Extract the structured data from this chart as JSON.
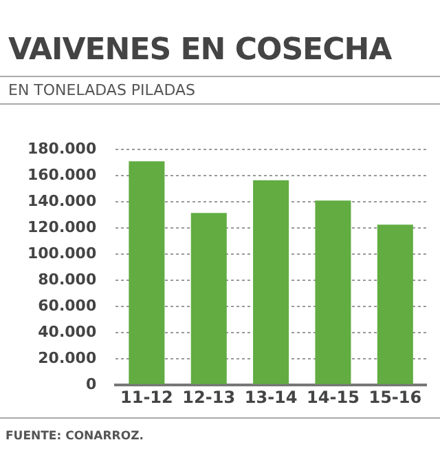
{
  "chart_data": {
    "type": "bar",
    "title": "VAIVENES EN COSECHA",
    "subtitle": "EN TONELADAS PILADAS",
    "categories": [
      "11-12",
      "12-13",
      "13-14",
      "14-15",
      "15-16"
    ],
    "values": [
      171000,
      131500,
      156500,
      141000,
      122500
    ],
    "color": "#62ac42",
    "ylim": [
      0,
      180000
    ],
    "yticks": [
      {
        "value": 0,
        "label": "0"
      },
      {
        "value": 20000,
        "label": "20.000"
      },
      {
        "value": 40000,
        "label": "40.000"
      },
      {
        "value": 60000,
        "label": "60.000"
      },
      {
        "value": 80000,
        "label": "80.000"
      },
      {
        "value": 100000,
        "label": "100.000"
      },
      {
        "value": 120000,
        "label": "120.000"
      },
      {
        "value": 140000,
        "label": "140.000"
      },
      {
        "value": 160000,
        "label": "160.000"
      },
      {
        "value": 180000,
        "label": "180.000"
      }
    ],
    "grid": "y",
    "legend": false,
    "annotations": [
      "FUENTE: CONARROZ."
    ]
  }
}
